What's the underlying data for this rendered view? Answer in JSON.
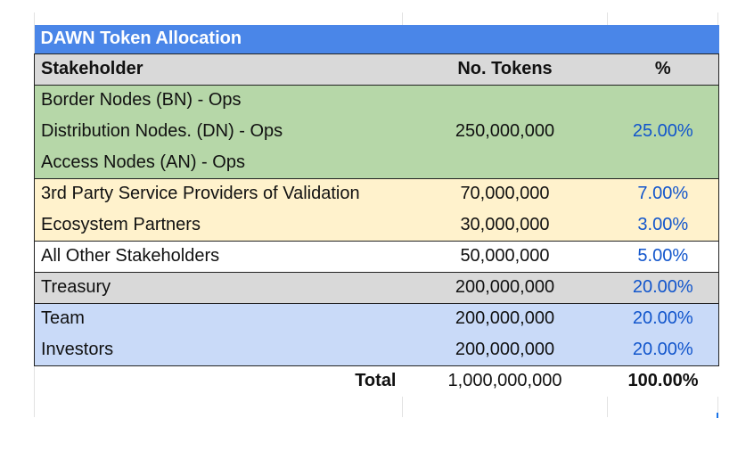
{
  "table": {
    "title": "DAWN Token Allocation",
    "headers": [
      "Stakeholder",
      "No. Tokens",
      "%"
    ],
    "rows": [
      {
        "stakeholder": "Border Nodes (BN) - Ops",
        "tokens": "",
        "pct": ""
      },
      {
        "stakeholder": "Distribution Nodes. (DN) - Ops",
        "tokens": "250,000,000",
        "pct": "25.00%"
      },
      {
        "stakeholder": "Access Nodes (AN) - Ops",
        "tokens": "",
        "pct": ""
      },
      {
        "stakeholder": "3rd Party Service Providers of Validation",
        "tokens": "70,000,000",
        "pct": "7.00%"
      },
      {
        "stakeholder": "Ecosystem Partners",
        "tokens": "30,000,000",
        "pct": "3.00%"
      },
      {
        "stakeholder": "All Other Stakeholders",
        "tokens": "50,000,000",
        "pct": "5.00%"
      },
      {
        "stakeholder": "Treasury",
        "tokens": "200,000,000",
        "pct": "20.00%"
      },
      {
        "stakeholder": "Team",
        "tokens": "200,000,000",
        "pct": "20.00%"
      },
      {
        "stakeholder": "Investors",
        "tokens": "200,000,000",
        "pct": "20.00%"
      }
    ],
    "total": {
      "label": "Total",
      "tokens": "1,000,000,000",
      "pct": "100.00%"
    }
  },
  "colors": {
    "title_bg": "#4a86e8",
    "header_bg": "#d9d9d9",
    "nodes_bg": "#b6d7a8",
    "partners_bg": "#fff2cc",
    "treasury_bg": "#d9d9d9",
    "team_investors_bg": "#c9daf8",
    "pct_text": "#1155cc"
  }
}
